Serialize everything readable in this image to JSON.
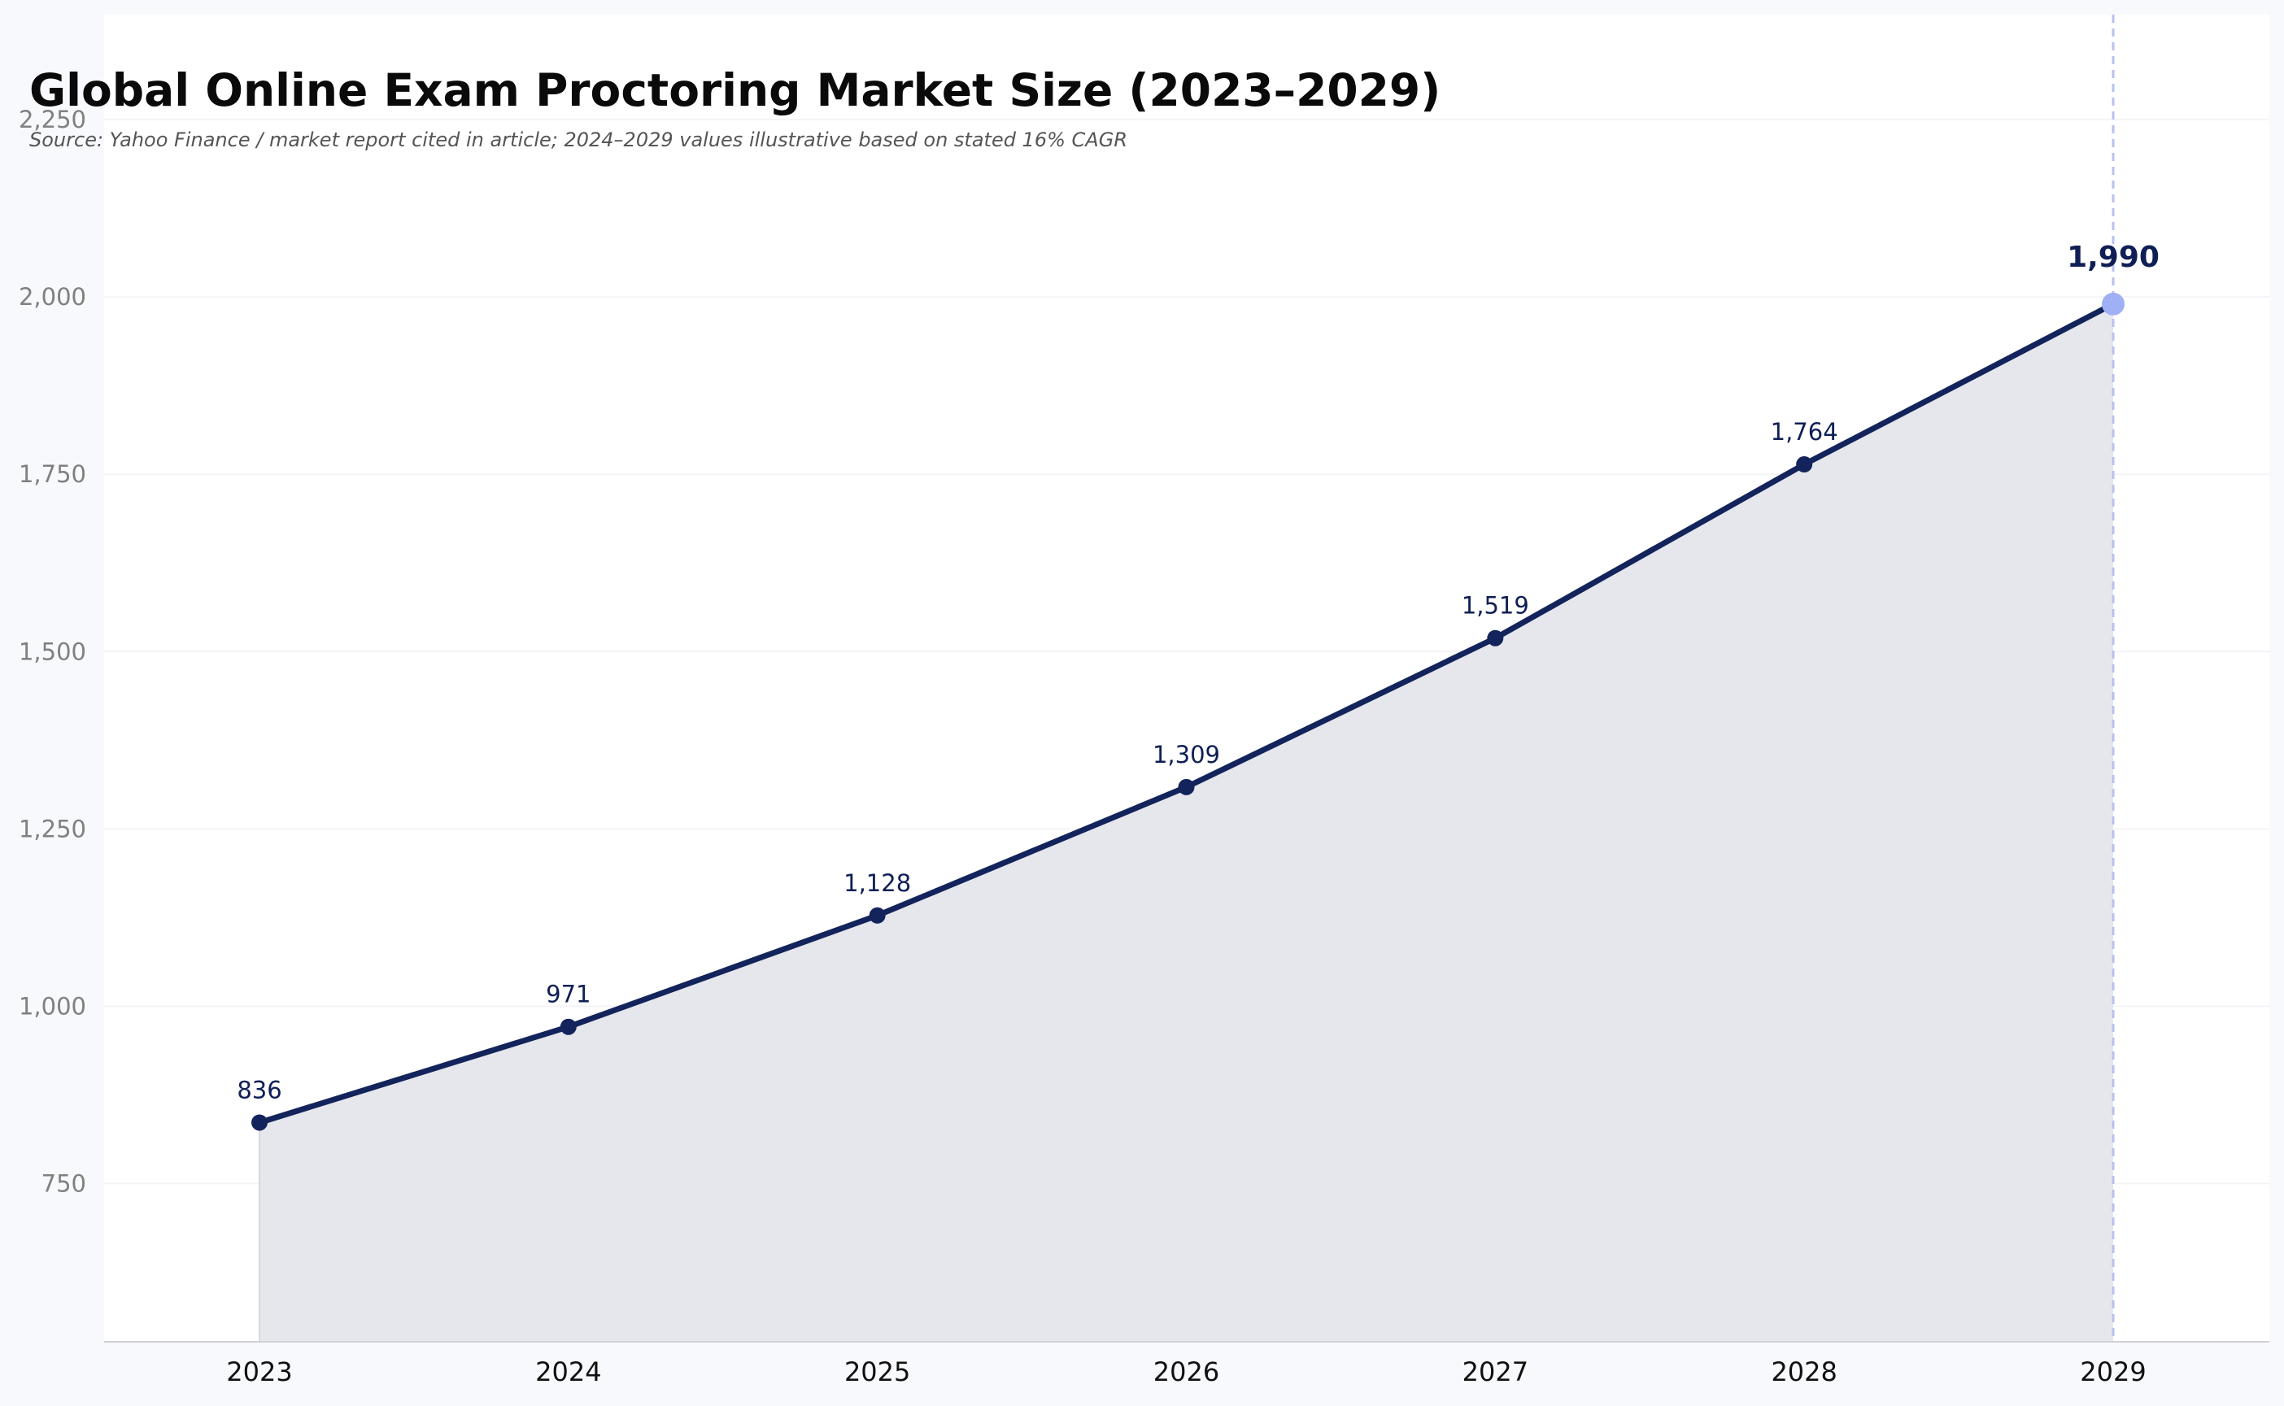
{
  "chart_data": {
    "type": "area",
    "title": "Global Online Exam Proctoring Market Size (2023–2029)",
    "subtitle": "Source: Yahoo Finance / market report cited in article; 2024–2029 values illustrative based on stated 16% CAGR",
    "xlabel": "",
    "ylabel": "",
    "categories": [
      "2023",
      "2024",
      "2025",
      "2026",
      "2027",
      "2028",
      "2029"
    ],
    "series": [
      {
        "values": [
          836,
          971,
          1128,
          1309,
          1519,
          1764,
          1990
        ],
        "data_labels": [
          "836",
          "971",
          "1,128",
          "1,309",
          "1,519",
          "1,764",
          "1,990"
        ]
      }
    ],
    "ylim": [
      527,
      2398
    ],
    "y_ticks": [
      750,
      1000,
      1250,
      1500,
      1750,
      2000,
      2250
    ],
    "y_tick_labels": [
      "750",
      "1,000",
      "1,250",
      "1,500",
      "1,750",
      "2,000",
      "2,250"
    ],
    "grid": "horizontal",
    "highlight": {
      "category": "2029",
      "style": "dashed vertical line and enlarged marker"
    },
    "colors": {
      "line": "#13235b",
      "area_fill": "#e6e7ed",
      "highlight": "#9fb0f5",
      "highlight_line": "#b8c1ee",
      "grid": "#f4f4f8",
      "plot_background": "#ffffff",
      "page_background": "#f8f9fc"
    }
  }
}
